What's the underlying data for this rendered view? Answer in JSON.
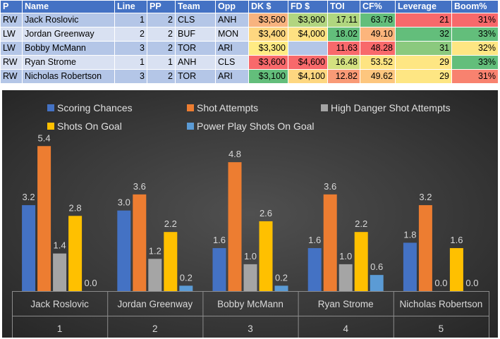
{
  "table": {
    "headers": [
      "P",
      "Name",
      "Line",
      "PP",
      "Team",
      "Opp",
      "DK $",
      "FD $",
      "TOI",
      "CF%",
      "Leverage",
      "Boom%"
    ],
    "rows": [
      {
        "pos": "RW",
        "name": "Jack Roslovic",
        "line": "1",
        "pp": "2",
        "team": "CLS",
        "opp": "ANH",
        "dk": "$3,500",
        "fd": "$3,900",
        "toi": "17.11",
        "cf": "63.78",
        "leverage": "21",
        "boom": "31%",
        "colors": {
          "dk": "#f8b37f",
          "fd": "#b2d580",
          "toi": "#b0d67f",
          "cf": "#63be7b",
          "leverage": "#f8696b",
          "boom": "#f8696b"
        }
      },
      {
        "pos": "LW",
        "name": "Jordan Greenway",
        "line": "2",
        "pp": "2",
        "team": "BUF",
        "opp": "MON",
        "dk": "$3,400",
        "fd": "$4,000",
        "toi": "18.02",
        "cf": "49.10",
        "leverage": "32",
        "boom": "33%",
        "colors": {
          "dk": "#fed780",
          "fd": "#fee182",
          "toi": "#63be7b",
          "cf": "#fcb57c",
          "leverage": "#63be7b",
          "boom": "#63be7b"
        }
      },
      {
        "pos": "LW",
        "name": "Bobby McMann",
        "line": "3",
        "pp": "2",
        "team": "TOR",
        "opp": "ARI",
        "dk": "$3,300",
        "fd": "",
        "toi": "11.63",
        "cf": "48.28",
        "leverage": "31",
        "boom": "32%",
        "colors": {
          "dk": "#ffeb84",
          "fd": "",
          "toi": "#f8696b",
          "cf": "#f8696b",
          "leverage": "#8bc97e",
          "boom": "#fee683"
        }
      },
      {
        "pos": "RW",
        "name": "Ryan Strome",
        "line": "1",
        "pp": "1",
        "team": "ANH",
        "opp": "CLS",
        "dk": "$3,600",
        "fd": "$4,600",
        "toi": "16.48",
        "cf": "53.52",
        "leverage": "29",
        "boom": "33%",
        "colors": {
          "dk": "#f8696b",
          "fd": "#f8696b",
          "toi": "#d4e180",
          "cf": "#fee482",
          "leverage": "#fee683",
          "boom": "#63be7b"
        }
      },
      {
        "pos": "RW",
        "name": "Nicholas Robertson",
        "line": "3",
        "pp": "2",
        "team": "TOR",
        "opp": "ARI",
        "dk": "$3,100",
        "fd": "$4,100",
        "toi": "12.82",
        "cf": "49.62",
        "leverage": "29",
        "boom": "31%",
        "colors": {
          "dk": "#63be7b",
          "fd": "#fed780",
          "toi": "#f99a76",
          "cf": "#fdc67e",
          "leverage": "#fee683",
          "boom": "#f8826f"
        }
      }
    ]
  },
  "chart_data": {
    "type": "bar",
    "title": "",
    "xlabel": "",
    "ylabel": "",
    "ylim": [
      0,
      6
    ],
    "grid": false,
    "legend_position": "top",
    "categories": [
      "Jack Roslovic",
      "Jordan Greenway",
      "Bobby McMann",
      "Ryan Strome",
      "Nicholas Robertson"
    ],
    "category_indices": [
      "1",
      "2",
      "3",
      "4",
      "5"
    ],
    "series": [
      {
        "name": "Scoring Chances",
        "color": "#4472c4",
        "values": [
          3.2,
          3.0,
          1.6,
          1.6,
          1.8
        ]
      },
      {
        "name": "Shot Attempts",
        "color": "#ed7d31",
        "values": [
          5.4,
          3.6,
          4.8,
          3.6,
          3.2
        ]
      },
      {
        "name": "High Danger Shot Attempts",
        "color": "#a5a5a5",
        "values": [
          1.4,
          1.2,
          1.0,
          1.0,
          0.0
        ]
      },
      {
        "name": "Shots On Goal",
        "color": "#ffc000",
        "values": [
          2.8,
          2.2,
          2.6,
          2.2,
          1.6
        ]
      },
      {
        "name": "Power Play Shots On Goal",
        "color": "#5b9bd5",
        "values": [
          0.0,
          0.2,
          0.2,
          0.6,
          0.0
        ]
      }
    ]
  }
}
